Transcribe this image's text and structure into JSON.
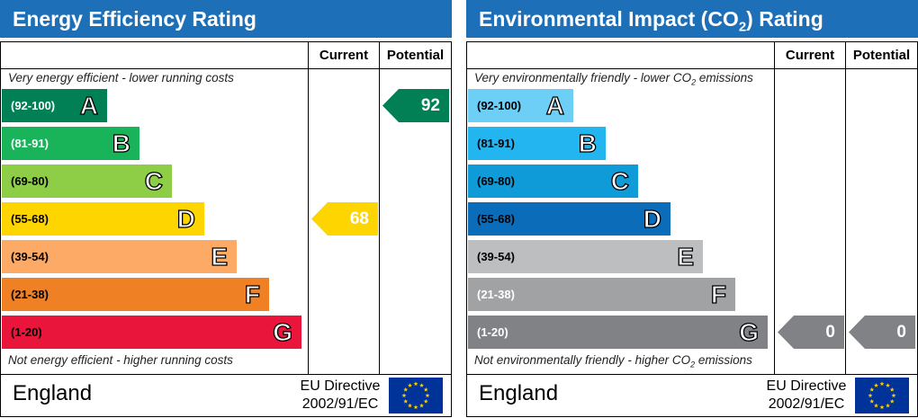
{
  "chart_data": [
    {
      "type": "table",
      "title": "Energy Efficiency Rating",
      "columns": [
        "Current",
        "Potential"
      ],
      "top_note": "Very energy efficient - lower running costs",
      "bottom_note": "Not energy efficient - higher running costs",
      "bands": [
        {
          "range": "(92-100)",
          "letter": "A",
          "color": "#008054",
          "text_color": "#ffffff"
        },
        {
          "range": "(81-91)",
          "letter": "B",
          "color": "#19b459",
          "text_color": "#ffffff"
        },
        {
          "range": "(69-80)",
          "letter": "C",
          "color": "#8dce46",
          "text_color": "#000000"
        },
        {
          "range": "(55-68)",
          "letter": "D",
          "color": "#ffd500",
          "text_color": "#000000"
        },
        {
          "range": "(39-54)",
          "letter": "E",
          "color": "#fcaa65",
          "text_color": "#000000"
        },
        {
          "range": "(21-38)",
          "letter": "F",
          "color": "#ef8023",
          "text_color": "#000000"
        },
        {
          "range": "(1-20)",
          "letter": "G",
          "color": "#e9153b",
          "text_color": "#000000"
        }
      ],
      "current": {
        "value": 68,
        "label": "68",
        "band": "D",
        "color": "#ffd500"
      },
      "potential": {
        "value": 92,
        "label": "92",
        "band": "A",
        "color": "#008054"
      },
      "country": "England",
      "directive_line1": "EU Directive",
      "directive_line2": "2002/91/EC"
    },
    {
      "type": "table",
      "title": "Environmental Impact (CO2) Rating",
      "title_prefix": "Environmental Impact (CO",
      "title_sub": "2",
      "title_suffix": ") Rating",
      "columns": [
        "Current",
        "Potential"
      ],
      "top_note": "Very environmentally friendly - lower CO2 emissions",
      "top_note_prefix": "Very environmentally friendly - lower CO",
      "top_note_sub": "2",
      "top_note_suffix": " emissions",
      "bottom_note": "Not environmentally friendly - higher CO2 emissions",
      "bottom_note_prefix": "Not environmentally friendly - higher CO",
      "bottom_note_sub": "2",
      "bottom_note_suffix": " emissions",
      "bands": [
        {
          "range": "(92-100)",
          "letter": "A",
          "color": "#6dcff6",
          "text_color": "#000000"
        },
        {
          "range": "(81-91)",
          "letter": "B",
          "color": "#22b5f0",
          "text_color": "#000000"
        },
        {
          "range": "(69-80)",
          "letter": "C",
          "color": "#0f9ad8",
          "text_color": "#000000"
        },
        {
          "range": "(55-68)",
          "letter": "D",
          "color": "#0b6db9",
          "text_color": "#000000"
        },
        {
          "range": "(39-54)",
          "letter": "E",
          "color": "#bcbec0",
          "text_color": "#000000"
        },
        {
          "range": "(21-38)",
          "letter": "F",
          "color": "#a0a2a4",
          "text_color": "#ffffff"
        },
        {
          "range": "(1-20)",
          "letter": "G",
          "color": "#808285",
          "text_color": "#ffffff"
        }
      ],
      "current": {
        "value": 0,
        "label": "0",
        "band": "G",
        "color": "#808285"
      },
      "potential": {
        "value": 0,
        "label": "0",
        "band": "G",
        "color": "#808285"
      },
      "country": "England",
      "directive_line1": "EU Directive",
      "directive_line2": "2002/91/EC"
    }
  ]
}
